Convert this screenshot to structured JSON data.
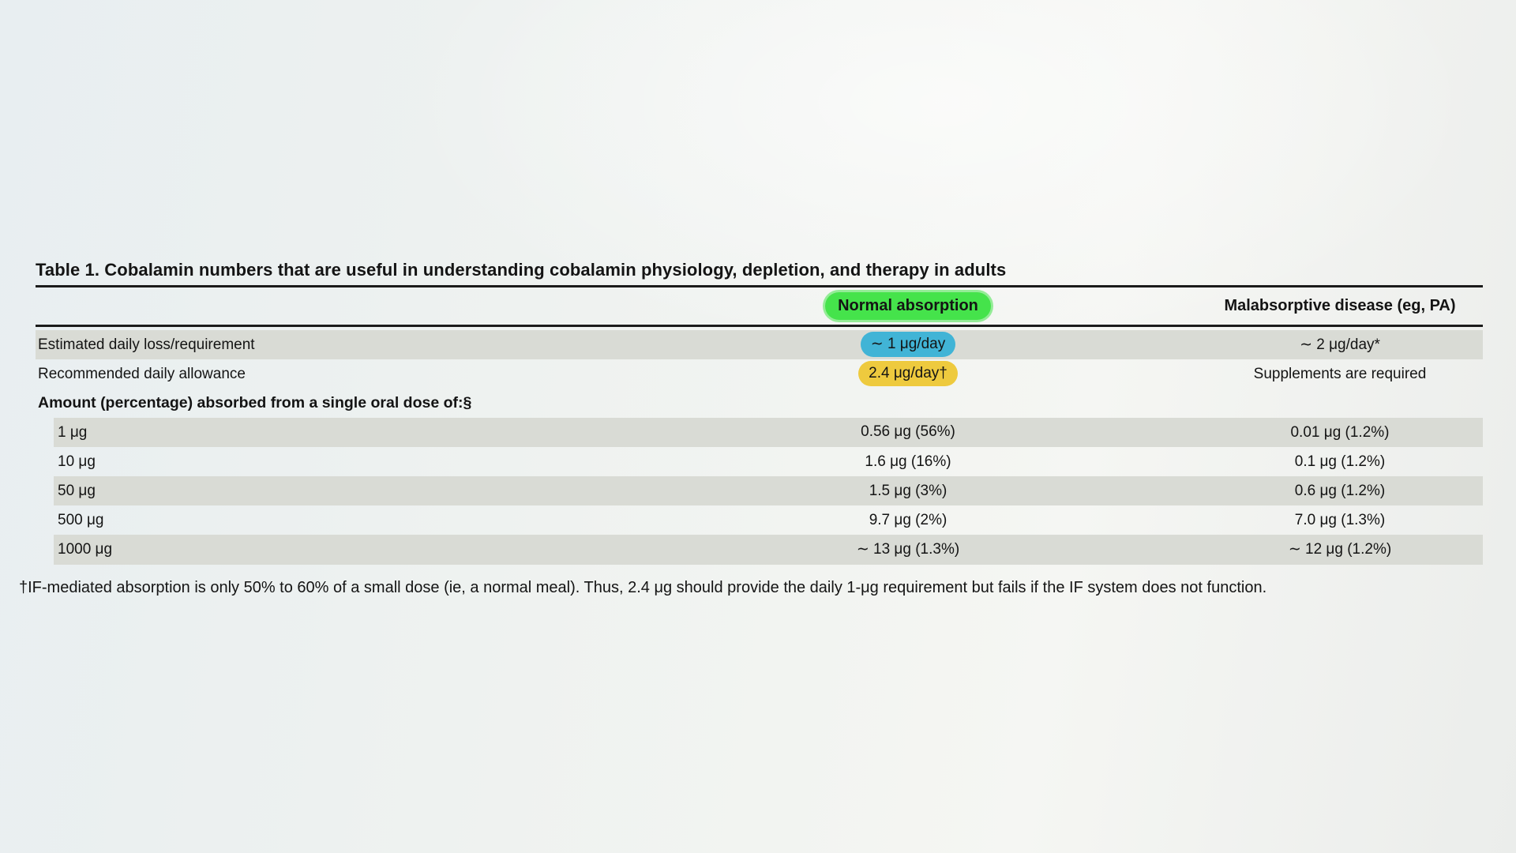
{
  "colors": {
    "highlight_green": "#45e34b",
    "highlight_blue": "#41b4d6",
    "highlight_yellow": "#eeca3e",
    "row_shade": "#d9dbd5",
    "rule": "#1b1b1b"
  },
  "table": {
    "title": "Table 1. Cobalamin numbers that are useful in understanding cobalamin physiology, depletion, and therapy in adults",
    "header": {
      "normal": "Normal absorption",
      "disease": "Malabsorptive disease (eg, PA)"
    },
    "rows": [
      {
        "label": "Estimated daily loss/requirement",
        "normal": "∼ 1 μg/day",
        "disease": "∼ 2 μg/day*"
      },
      {
        "label": "Recommended daily allowance",
        "normal": "2.4 μg/day†",
        "disease": "Supplements are required"
      },
      {
        "label": "Amount (percentage) absorbed from a single oral dose of:§",
        "normal": "",
        "disease": ""
      },
      {
        "label": "1 μg",
        "normal": "0.56 μg (56%)",
        "disease": "0.01 μg (1.2%)"
      },
      {
        "label": "10 μg",
        "normal": "1.6 μg (16%)",
        "disease": "0.1 μg (1.2%)"
      },
      {
        "label": "50 μg",
        "normal": "1.5 μg (3%)",
        "disease": "0.6 μg (1.2%)"
      },
      {
        "label": "500 μg",
        "normal": "9.7 μg (2%)",
        "disease": "7.0 μg (1.3%)"
      },
      {
        "label": "1000 μg",
        "normal": "∼ 13 μg (1.3%)",
        "disease": "∼ 12 μg (1.2%)"
      }
    ],
    "footnote": "†IF-mediated absorption is only 50% to 60% of a small dose (ie, a normal meal). Thus, 2.4 μg should provide the daily 1-μg requirement but fails if the IF system does not function."
  }
}
